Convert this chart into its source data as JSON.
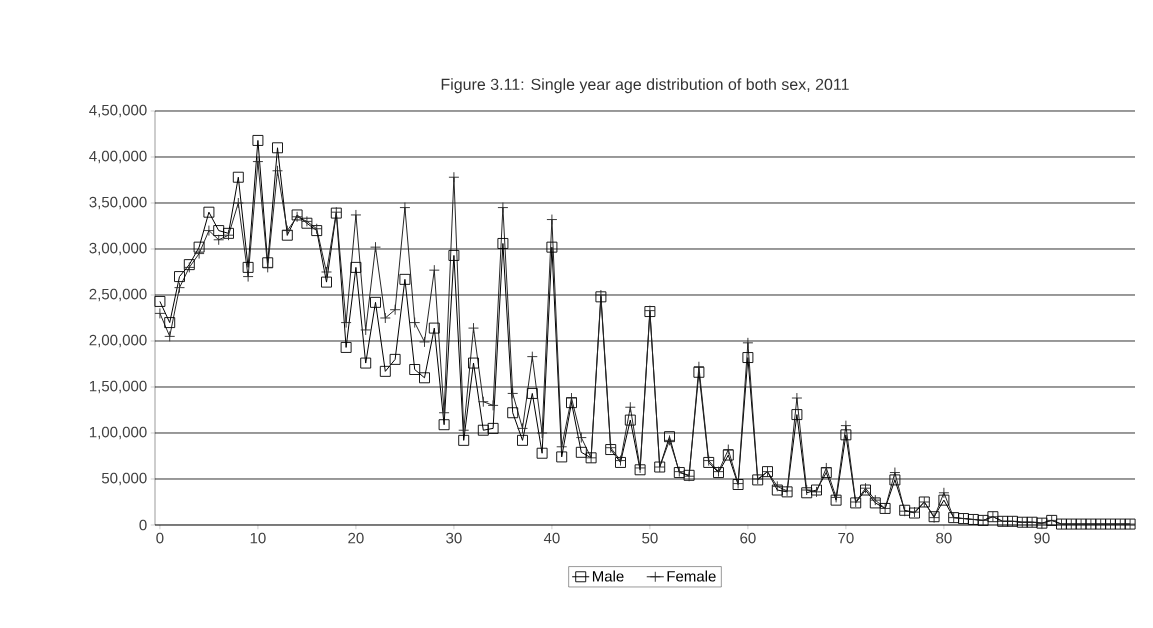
{
  "chart_data": {
    "type": "line",
    "title": "Figure 3.11: Single year age distribution of both sex, 2011",
    "x": [
      0,
      1,
      2,
      3,
      4,
      5,
      6,
      7,
      8,
      9,
      10,
      11,
      12,
      13,
      14,
      15,
      16,
      17,
      18,
      19,
      20,
      21,
      22,
      23,
      24,
      25,
      26,
      27,
      28,
      29,
      30,
      31,
      32,
      33,
      34,
      35,
      36,
      37,
      38,
      39,
      40,
      41,
      42,
      43,
      44,
      45,
      46,
      47,
      48,
      49,
      50,
      51,
      52,
      53,
      54,
      55,
      56,
      57,
      58,
      59,
      60,
      61,
      62,
      63,
      64,
      65,
      66,
      67,
      68,
      69,
      70,
      71,
      72,
      73,
      74,
      75,
      76,
      77,
      78,
      79,
      80,
      81,
      82,
      83,
      84,
      85,
      86,
      87,
      88,
      89,
      90,
      91,
      92,
      93,
      94,
      95,
      96,
      97,
      98,
      99
    ],
    "series": [
      {
        "name": "Male",
        "color": "#000000",
        "marker": "square",
        "values": [
          243000,
          220000,
          270000,
          283000,
          302000,
          340000,
          320000,
          317000,
          378000,
          280000,
          418000,
          285000,
          410000,
          315000,
          337000,
          328000,
          320000,
          264000,
          339000,
          193000,
          280000,
          176000,
          242000,
          167000,
          180000,
          267000,
          169000,
          160000,
          214000,
          109000,
          293000,
          92000,
          176000,
          103000,
          105000,
          306000,
          122000,
          92000,
          143000,
          78000,
          302000,
          74000,
          133000,
          79000,
          73000,
          248000,
          82000,
          68000,
          114000,
          60000,
          232000,
          63000,
          96000,
          57000,
          54000,
          166000,
          68000,
          57000,
          76000,
          44000,
          182000,
          49000,
          58000,
          38000,
          36000,
          120000,
          35000,
          38000,
          57000,
          27000,
          98000,
          24000,
          38000,
          24000,
          18000,
          49000,
          16000,
          13000,
          25000,
          9000,
          27000,
          8000,
          7000,
          6000,
          5000,
          9000,
          4000,
          4000,
          3000,
          3000,
          2000,
          5000,
          1000,
          1000,
          1000,
          1000,
          1000,
          1000,
          1000,
          1000
        ]
      },
      {
        "name": "Female",
        "color": "#262626",
        "marker": "cross",
        "values": [
          230000,
          205000,
          258000,
          280000,
          295000,
          320000,
          310000,
          315000,
          350000,
          270000,
          395000,
          280000,
          385000,
          320000,
          335000,
          330000,
          322000,
          275000,
          340000,
          220000,
          337000,
          212000,
          302000,
          225000,
          234000,
          345000,
          220000,
          199000,
          277000,
          122000,
          378000,
          103000,
          214000,
          134000,
          130000,
          345000,
          143000,
          105000,
          183000,
          100000,
          332000,
          85000,
          138000,
          95000,
          73000,
          250000,
          84000,
          70000,
          128000,
          62000,
          233000,
          63000,
          92000,
          58000,
          53000,
          172000,
          70000,
          58000,
          82000,
          45000,
          198000,
          50000,
          58000,
          42000,
          37000,
          138000,
          38000,
          36000,
          62000,
          30000,
          108000,
          25000,
          40000,
          27000,
          18000,
          57000,
          15000,
          14000,
          25000,
          8000,
          35000,
          8000,
          7000,
          6000,
          5000,
          9000,
          4000,
          4000,
          3000,
          3000,
          2000,
          5000,
          1000,
          1000,
          1000,
          1000,
          1000,
          1000,
          1000,
          1000
        ]
      }
    ],
    "xlim": [
      -0.5,
      99.5
    ],
    "ylim": [
      0,
      450000
    ],
    "xticks": [
      0,
      10,
      20,
      30,
      40,
      50,
      60,
      70,
      80,
      90
    ],
    "yticks": [
      {
        "value": 0,
        "label": "0"
      },
      {
        "value": 50000,
        "label": "50,000"
      },
      {
        "value": 100000,
        "label": "1,00,000"
      },
      {
        "value": 150000,
        "label": "1,50,000"
      },
      {
        "value": 200000,
        "label": "2,00,000"
      },
      {
        "value": 250000,
        "label": "2,50,000"
      },
      {
        "value": 300000,
        "label": "3,00,000"
      },
      {
        "value": 350000,
        "label": "3,50,000"
      },
      {
        "value": 400000,
        "label": "4,00,000"
      },
      {
        "value": 450000,
        "label": "4,50,000"
      }
    ],
    "grid": "y",
    "legend": "bottom",
    "line_style": "solid"
  }
}
